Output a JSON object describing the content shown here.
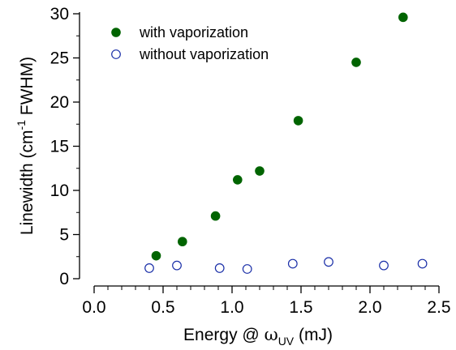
{
  "chart_data": {
    "type": "scatter",
    "xlabel_prefix": "Energy @ ",
    "xlabel_symbol": "ω",
    "xlabel_subscript": "UV",
    "xlabel_suffix": " (mJ)",
    "ylabel_prefix": "Linewidth (cm",
    "ylabel_superscript": "-1",
    "ylabel_suffix": " FWHM)",
    "xlim": [
      0,
      2.5
    ],
    "ylim": [
      0,
      30
    ],
    "x_ticks": [
      "0.0",
      "0.5",
      "1.0",
      "1.5",
      "2.0",
      "2.5"
    ],
    "y_ticks": [
      "0",
      "5",
      "10",
      "15",
      "20",
      "25",
      "30"
    ],
    "grid": false,
    "legend_position": "top-left",
    "series": [
      {
        "name": "with vaporization",
        "marker": "filled-circle",
        "color": "#006400",
        "points": [
          {
            "x": 0.45,
            "y": 2.6
          },
          {
            "x": 0.64,
            "y": 4.2
          },
          {
            "x": 0.88,
            "y": 7.1
          },
          {
            "x": 1.04,
            "y": 11.2
          },
          {
            "x": 1.2,
            "y": 12.2
          },
          {
            "x": 1.48,
            "y": 17.9
          },
          {
            "x": 1.9,
            "y": 24.5
          },
          {
            "x": 2.24,
            "y": 29.6
          }
        ]
      },
      {
        "name": "without vaporization",
        "marker": "open-circle",
        "color": "#1a2fa8",
        "points": [
          {
            "x": 0.4,
            "y": 1.2
          },
          {
            "x": 0.6,
            "y": 1.5
          },
          {
            "x": 0.91,
            "y": 1.2
          },
          {
            "x": 1.11,
            "y": 1.1
          },
          {
            "x": 1.44,
            "y": 1.7
          },
          {
            "x": 1.7,
            "y": 1.9
          },
          {
            "x": 2.1,
            "y": 1.5
          },
          {
            "x": 2.38,
            "y": 1.7
          }
        ]
      }
    ]
  }
}
